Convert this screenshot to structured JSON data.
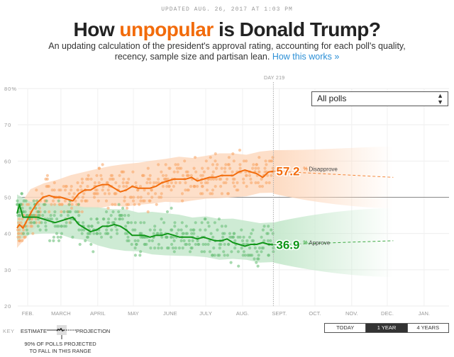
{
  "header": {
    "updated": "UPDATED AUG. 26, 2017 AT 1:03 PM",
    "title_before": "How ",
    "title_highlight": "unpopular",
    "title_after": " is Donald Trump?",
    "subtitle": "An updating calculation of the president's approval rating, accounting for each poll's quality, recency, sample size and partisan lean.",
    "link": "How this works »"
  },
  "colors": {
    "disapprove": "#f26b0b",
    "approve": "#109618",
    "link": "#2b8fd6"
  },
  "controls": {
    "poll_filter": "All polls",
    "day_label": "DAY 219",
    "time_buttons": [
      {
        "label": "TODAY",
        "active": false
      },
      {
        "label": "1 YEAR",
        "active": true
      },
      {
        "label": "4 YEARS",
        "active": false
      }
    ]
  },
  "legend": {
    "key": "KEY",
    "estimate": "ESTIMATE",
    "projection": "PROJECTION",
    "range": "90% OF POLLS PROJECTED TO FALL IN THIS RANGE"
  },
  "chart_data": {
    "type": "line",
    "title": "How unpopular is Donald Trump?",
    "xlabel": "",
    "ylabel": "",
    "ylim": [
      20,
      80
    ],
    "yticks": [
      "80%",
      "70",
      "60",
      "50",
      "40",
      "30",
      "20"
    ],
    "xticks": [
      "FEB.",
      "MARCH",
      "APRIL",
      "MAY",
      "JUNE",
      "JULY",
      "AUG.",
      "SEPT.",
      "OCT.",
      "NOV.",
      "DEC.",
      "JAN."
    ],
    "reference_line": 50,
    "current_day": 219,
    "grid": true,
    "series": [
      {
        "name": "Disapprove",
        "current_value": 57.2,
        "label": "57.2",
        "day": [
          3,
          5,
          8,
          12,
          16,
          20,
          25,
          30,
          35,
          40,
          45,
          50,
          55,
          60,
          65,
          70,
          75,
          80,
          85,
          90,
          95,
          100,
          105,
          110,
          115,
          120,
          125,
          130,
          135,
          140,
          145,
          150,
          155,
          160,
          165,
          170,
          175,
          180,
          185,
          190,
          195,
          200,
          205,
          210,
          215,
          219
        ],
        "values": [
          41.5,
          42.5,
          41.5,
          44,
          46.5,
          48.5,
          50,
          50.5,
          50,
          50,
          49.5,
          49,
          51,
          52,
          52,
          53,
          53.5,
          53.5,
          52.5,
          51.5,
          52,
          53,
          52.5,
          52.5,
          52.5,
          53,
          54,
          54.5,
          55,
          55,
          55,
          55.5,
          54.5,
          55,
          55.5,
          55.5,
          56,
          56,
          56,
          57,
          57.5,
          57,
          56.5,
          55.5,
          57,
          57.2
        ],
        "projection_end": 55.5,
        "band_upper": [
          47,
          52,
          54,
          55,
          56,
          57,
          58,
          58.5,
          59,
          59.5,
          60,
          60.5,
          61,
          61,
          61.5,
          62,
          62,
          62,
          62.5,
          63
        ],
        "band_lower": [
          36,
          40,
          44,
          45.5,
          46,
          47,
          47,
          47.5,
          47.5,
          48,
          48,
          48.5,
          48.5,
          49,
          49.5,
          49.5,
          50,
          50.5,
          51,
          51
        ],
        "polls_range": [
          35,
          68
        ]
      },
      {
        "name": "Approve",
        "current_value": 36.9,
        "label": "36.9",
        "day": [
          3,
          5,
          8,
          12,
          16,
          20,
          25,
          30,
          35,
          40,
          45,
          50,
          55,
          60,
          65,
          70,
          75,
          80,
          85,
          90,
          95,
          100,
          105,
          110,
          115,
          120,
          125,
          130,
          135,
          140,
          145,
          150,
          155,
          160,
          165,
          170,
          175,
          180,
          185,
          190,
          195,
          200,
          205,
          210,
          215,
          219
        ],
        "values": [
          45.5,
          48,
          44.5,
          44.5,
          44.5,
          44.5,
          44,
          43.5,
          43,
          43.5,
          44,
          44.5,
          42.5,
          41.5,
          40.5,
          41,
          42,
          42,
          42.5,
          42,
          41,
          39.5,
          39.5,
          39.5,
          39,
          39.5,
          39.5,
          40,
          39.5,
          39,
          39,
          39,
          38.5,
          39,
          38.5,
          38,
          38,
          38.5,
          37.5,
          37,
          36.5,
          37,
          37,
          37.5,
          37,
          36.9
        ],
        "projection_end": 38,
        "band_upper": [
          51,
          49,
          48,
          48,
          48,
          47,
          47,
          46.5,
          46.5,
          46,
          46,
          45.5,
          45,
          44.5,
          44.5,
          44,
          44,
          43.5,
          43,
          43
        ],
        "band_lower": [
          38,
          40,
          40,
          40,
          39,
          38,
          37,
          36,
          35,
          35,
          34.5,
          34,
          34,
          33.5,
          33.5,
          33,
          33,
          32.5,
          32,
          32
        ],
        "polls_range": [
          32,
          55
        ]
      }
    ]
  }
}
